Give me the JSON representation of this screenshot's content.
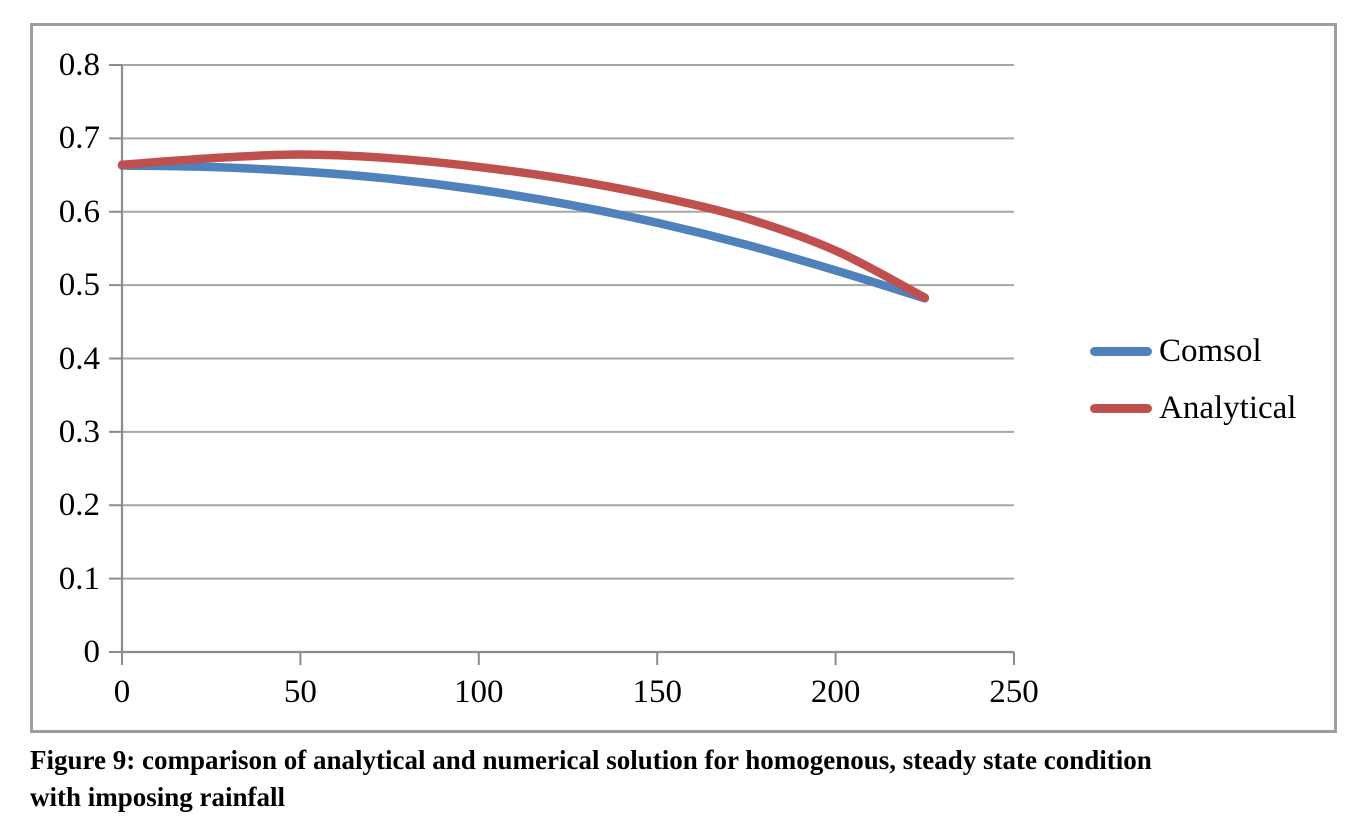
{
  "figure": {
    "caption_line1": "Figure 9: comparison of analytical and numerical solution for homogenous, steady state condition",
    "caption_line2": "with imposing rainfall"
  },
  "chart_data": {
    "type": "line",
    "title": "",
    "xlabel": "",
    "ylabel": "",
    "xlim": [
      0,
      250
    ],
    "ylim": [
      0,
      0.8
    ],
    "x_ticks": [
      "0",
      "50",
      "100",
      "150",
      "200",
      "250"
    ],
    "y_ticks": [
      "0",
      "0.1",
      "0.2",
      "0.3",
      "0.4",
      "0.5",
      "0.6",
      "0.7",
      "0.8"
    ],
    "grid": "horizontal-only",
    "legend_position": "right",
    "x": [
      0,
      25,
      50,
      75,
      100,
      125,
      150,
      175,
      200,
      225
    ],
    "series": [
      {
        "name": "Comsol",
        "color": "#4F81BD",
        "values": [
          0.663,
          0.661,
          0.655,
          0.645,
          0.63,
          0.61,
          0.585,
          0.555,
          0.52,
          0.482
        ]
      },
      {
        "name": "Analytical",
        "color": "#C0504D",
        "values": [
          0.664,
          0.673,
          0.678,
          0.673,
          0.661,
          0.644,
          0.621,
          0.591,
          0.547,
          0.483
        ]
      }
    ],
    "colors": {
      "gridline": "#A6A6A6",
      "axis": "#8C8C8C",
      "tick": "#8C8C8C",
      "frame_border": "#9D9D9D",
      "text": "#000000",
      "background": "#FFFFFF"
    }
  }
}
